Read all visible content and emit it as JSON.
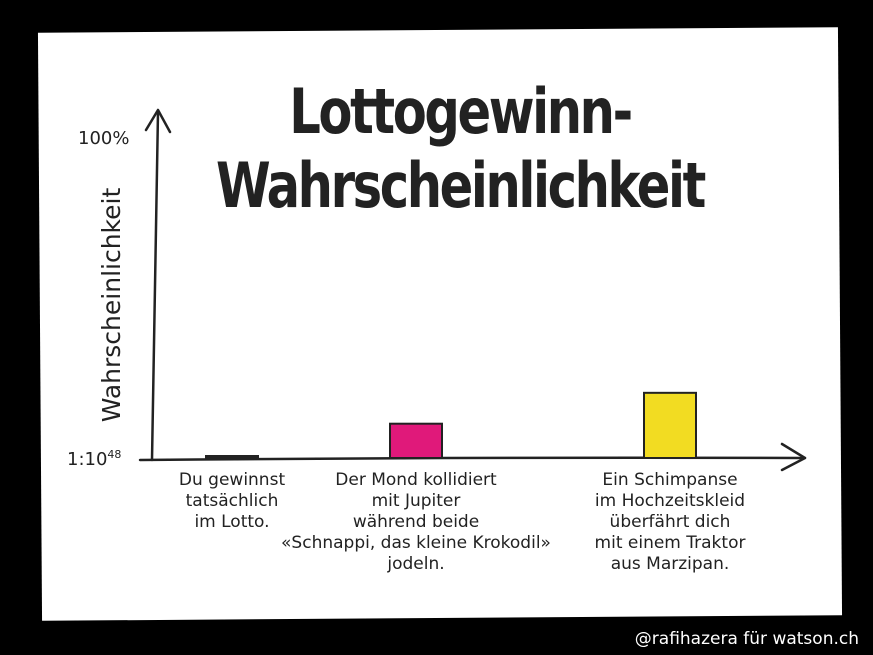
{
  "chart_data": {
    "type": "bar",
    "title_lines": [
      "Lottogewinn-",
      "Wahrscheinlichkeit"
    ],
    "ylabel": "Wahrscheinlichkeit",
    "ytick_top": "100%",
    "ytick_bottom_base": "1:10",
    "ytick_bottom_exp": "48",
    "categories": [
      "Du gewinnst\ntatsächlich\nim Lotto.",
      "Der Mond kollidiert\nmit Jupiter\nwährend beide\n«Schnappi, das kleine Krokodil»\njodeln.",
      "Ein Schimpanse\nim Hochzeitskleid\nüberfährt dich\nmit einem Traktor\naus Marzipan."
    ],
    "values": [
      0.0,
      0.1,
      0.19
    ],
    "colors": [
      "#333333",
      "#e0197a",
      "#f2dc22"
    ],
    "ylim": [
      0,
      1
    ]
  },
  "credit": "@rafihazera für watson.ch"
}
